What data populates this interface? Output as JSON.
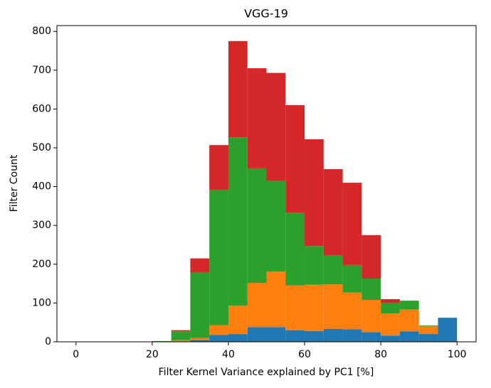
{
  "chart_data": {
    "type": "histogram",
    "title": "VGG-19",
    "xlabel": "Filter Kernel Variance explained by PC1 [%]",
    "ylabel": "Filter Count",
    "stacked": true,
    "bins": [
      0,
      5,
      10,
      15,
      20,
      25,
      30,
      35,
      40,
      45,
      50,
      55,
      60,
      65,
      70,
      75,
      80,
      85,
      90,
      95,
      100
    ],
    "series": [
      {
        "color": "#1f77b4",
        "values": [
          0,
          0,
          0,
          0,
          0,
          1,
          5,
          18,
          20,
          38,
          38,
          30,
          28,
          33,
          32,
          25,
          16,
          27,
          20,
          62
        ]
      },
      {
        "color": "#ff7f0e",
        "values": [
          0,
          0,
          0,
          0,
          0,
          3,
          5,
          25,
          73,
          114,
          143,
          115,
          119,
          115,
          95,
          83,
          57,
          56,
          20,
          0
        ]
      },
      {
        "color": "#2ca02c",
        "values": [
          0,
          0,
          0,
          0,
          2,
          23,
          168,
          349,
          434,
          295,
          234,
          187,
          100,
          74,
          71,
          55,
          27,
          23,
          2,
          0
        ]
      },
      {
        "color": "#d62728",
        "values": [
          0,
          0,
          0,
          0,
          0,
          3,
          37,
          115,
          248,
          258,
          278,
          278,
          275,
          223,
          212,
          112,
          10,
          0,
          0,
          0
        ]
      }
    ],
    "xlim": [
      -5,
      105
    ],
    "xticks": [
      0,
      20,
      40,
      60,
      80,
      100
    ],
    "ylim": [
      0,
      815
    ],
    "yticks": [
      0,
      100,
      200,
      300,
      400,
      500,
      600,
      700,
      800
    ]
  }
}
